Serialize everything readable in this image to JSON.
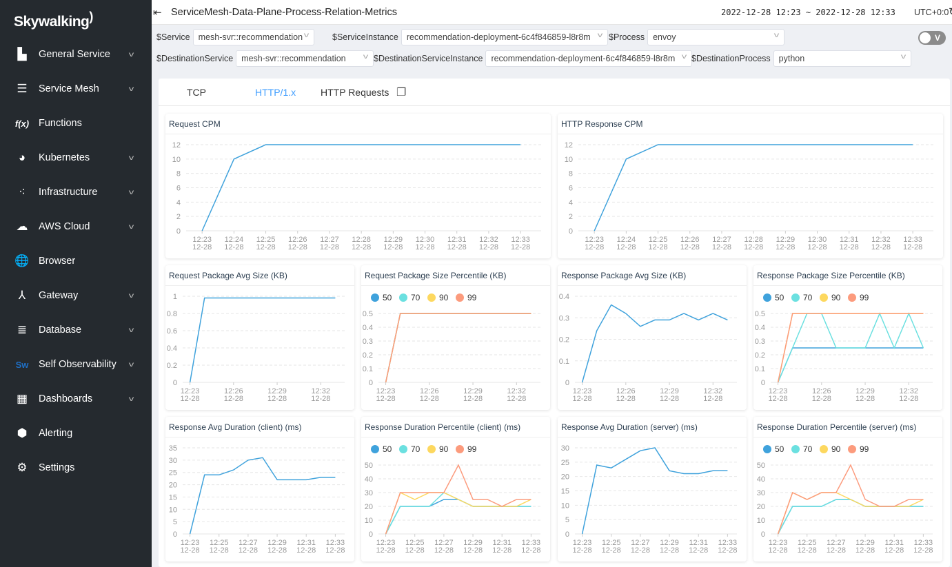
{
  "app": {
    "logo": "Skywalking"
  },
  "sidebar": {
    "items": [
      {
        "label": "General Service",
        "icon": "chart-icon",
        "glyph": "▙",
        "chevron": true
      },
      {
        "label": "Service Mesh",
        "icon": "mesh-icon",
        "glyph": "☰",
        "chevron": true
      },
      {
        "label": "Functions",
        "icon": "function-icon",
        "glyph": "f(x)",
        "chevron": false
      },
      {
        "label": "Kubernetes",
        "icon": "kubernetes-icon",
        "glyph": "◕",
        "chevron": true
      },
      {
        "label": "Infrastructure",
        "icon": "infrastructure-icon",
        "glyph": "⁖",
        "chevron": true
      },
      {
        "label": "AWS Cloud",
        "icon": "cloud-icon",
        "glyph": "☁",
        "chevron": true
      },
      {
        "label": "Browser",
        "icon": "globe-icon",
        "glyph": "🌐",
        "chevron": false
      },
      {
        "label": "Gateway",
        "icon": "gateway-icon",
        "glyph": "⅄",
        "chevron": true
      },
      {
        "label": "Database",
        "icon": "database-icon",
        "glyph": "≣",
        "chevron": true
      },
      {
        "label": "Self Observability",
        "icon": "sw-icon",
        "glyph": "Sw",
        "chevron": true
      },
      {
        "label": "Dashboards",
        "icon": "dashboard-add-icon",
        "glyph": "▦",
        "chevron": true
      },
      {
        "label": "Alerting",
        "icon": "alert-icon",
        "glyph": "⬢",
        "chevron": false
      },
      {
        "label": "Settings",
        "icon": "gear-icon",
        "glyph": "⚙",
        "chevron": false
      }
    ]
  },
  "header": {
    "title": "ServiceMesh-Data-Plane-Process-Relation-Metrics",
    "time_range": "2022-12-28 12:23 ~ 2022-12-28 12:33",
    "timezone": "UTC+0:0"
  },
  "filters": {
    "service": {
      "label": "$Service",
      "value": "mesh-svr::recommendation"
    },
    "service_instance": {
      "label": "$ServiceInstance",
      "value": "recommendation-deployment-6c4f846859-l8r8m"
    },
    "process": {
      "label": "$Process",
      "value": "envoy"
    },
    "dest_service": {
      "label": "$DestinationService",
      "value": "mesh-svr::recommendation"
    },
    "dest_instance": {
      "label": "$DestinationServiceInstance",
      "value": "recommendation-deployment-6c4f846859-l8r8m"
    },
    "dest_process": {
      "label": "$DestinationProcess",
      "value": "python"
    },
    "toggle_label": "V"
  },
  "tabs": [
    {
      "label": "TCP",
      "active": false
    },
    {
      "label": "HTTP/1.x",
      "active": true
    },
    {
      "label": "HTTP Requests",
      "active": false
    }
  ],
  "colors": {
    "accent": "#409eff",
    "sidebar": "#252a2f",
    "p50": "#3fa2dc",
    "p70": "#6be0e0",
    "p90": "#fdd85f",
    "p99": "#fc9b7d"
  },
  "chart_data": [
    {
      "type": "line",
      "title": "Request CPM",
      "x": [
        "12:23",
        "12:24",
        "12:25",
        "12:26",
        "12:27",
        "12:28",
        "12:29",
        "12:30",
        "12:31",
        "12:32",
        "12:33"
      ],
      "x_date": "12-28",
      "xticks": [
        "12:23",
        "12:24",
        "12:25",
        "12:26",
        "12:27",
        "12:28",
        "12:29",
        "12:30",
        "12:31",
        "12:32",
        "12:33"
      ],
      "ylim": [
        0,
        12
      ],
      "yticks": [
        0,
        2,
        4,
        6,
        8,
        10,
        12
      ],
      "grid": true,
      "series": [
        {
          "values": [
            0,
            10,
            12,
            12,
            12,
            12,
            12,
            12,
            12,
            12,
            12
          ]
        }
      ]
    },
    {
      "type": "line",
      "title": "HTTP Response CPM",
      "x": [
        "12:23",
        "12:24",
        "12:25",
        "12:26",
        "12:27",
        "12:28",
        "12:29",
        "12:30",
        "12:31",
        "12:32",
        "12:33"
      ],
      "x_date": "12-28",
      "xticks": [
        "12:23",
        "12:24",
        "12:25",
        "12:26",
        "12:27",
        "12:28",
        "12:29",
        "12:30",
        "12:31",
        "12:32",
        "12:33"
      ],
      "ylim": [
        0,
        12
      ],
      "yticks": [
        0,
        2,
        4,
        6,
        8,
        10,
        12
      ],
      "grid": true,
      "series": [
        {
          "values": [
            0,
            10,
            12,
            12,
            12,
            12,
            12,
            12,
            12,
            12,
            12
          ]
        }
      ]
    },
    {
      "type": "line",
      "title": "Request Package Avg Size (KB)",
      "x": [
        "12:23",
        "12:24",
        "12:25",
        "12:26",
        "12:27",
        "12:28",
        "12:29",
        "12:30",
        "12:31",
        "12:32",
        "12:33"
      ],
      "x_date": "12-28",
      "xticks": [
        "12:23",
        "12:26",
        "12:29",
        "12:32"
      ],
      "ylim": [
        0,
        1
      ],
      "yticks": [
        0,
        0.2,
        0.4,
        0.6,
        0.8,
        1
      ],
      "grid": true,
      "series": [
        {
          "values": [
            0,
            0.98,
            0.98,
            0.98,
            0.98,
            0.98,
            0.98,
            0.98,
            0.98,
            0.98,
            0.98
          ]
        }
      ]
    },
    {
      "type": "line",
      "title": "Request Package Size Percentile (KB)",
      "x": [
        "12:23",
        "12:24",
        "12:25",
        "12:26",
        "12:27",
        "12:28",
        "12:29",
        "12:30",
        "12:31",
        "12:32",
        "12:33"
      ],
      "x_date": "12-28",
      "xticks": [
        "12:23",
        "12:26",
        "12:29",
        "12:32"
      ],
      "ylim": [
        0,
        0.5
      ],
      "yticks": [
        0,
        0.1,
        0.2,
        0.3,
        0.4,
        0.5
      ],
      "grid": true,
      "legend": "top-left",
      "series": [
        {
          "name": "50",
          "values": [
            0,
            0.5,
            0.5,
            0.5,
            0.5,
            0.5,
            0.5,
            0.5,
            0.5,
            0.5,
            0.5
          ]
        },
        {
          "name": "70",
          "values": [
            0,
            0.5,
            0.5,
            0.5,
            0.5,
            0.5,
            0.5,
            0.5,
            0.5,
            0.5,
            0.5
          ]
        },
        {
          "name": "90",
          "values": [
            0,
            0.5,
            0.5,
            0.5,
            0.5,
            0.5,
            0.5,
            0.5,
            0.5,
            0.5,
            0.5
          ]
        },
        {
          "name": "99",
          "values": [
            0,
            0.5,
            0.5,
            0.5,
            0.5,
            0.5,
            0.5,
            0.5,
            0.5,
            0.5,
            0.5
          ]
        }
      ]
    },
    {
      "type": "line",
      "title": "Response Package Avg Size (KB)",
      "x": [
        "12:23",
        "12:24",
        "12:25",
        "12:26",
        "12:27",
        "12:28",
        "12:29",
        "12:30",
        "12:31",
        "12:32",
        "12:33"
      ],
      "x_date": "12-28",
      "xticks": [
        "12:23",
        "12:26",
        "12:29",
        "12:32"
      ],
      "ylim": [
        0,
        0.4
      ],
      "yticks": [
        0,
        0.1,
        0.2,
        0.3,
        0.4
      ],
      "grid": true,
      "series": [
        {
          "values": [
            0,
            0.24,
            0.36,
            0.32,
            0.26,
            0.29,
            0.29,
            0.32,
            0.29,
            0.32,
            0.29
          ]
        }
      ]
    },
    {
      "type": "line",
      "title": "Response Package Size Percentile (KB)",
      "x": [
        "12:23",
        "12:24",
        "12:25",
        "12:26",
        "12:27",
        "12:28",
        "12:29",
        "12:30",
        "12:31",
        "12:32",
        "12:33"
      ],
      "x_date": "12-28",
      "xticks": [
        "12:23",
        "12:26",
        "12:29",
        "12:32"
      ],
      "ylim": [
        0,
        0.5
      ],
      "yticks": [
        0,
        0.1,
        0.2,
        0.3,
        0.4,
        0.5
      ],
      "grid": true,
      "legend": "top-left",
      "series": [
        {
          "name": "50",
          "values": [
            0,
            0.25,
            0.25,
            0.25,
            0.25,
            0.25,
            0.25,
            0.25,
            0.25,
            0.25,
            0.25
          ]
        },
        {
          "name": "70",
          "values": [
            0,
            0.25,
            0.5,
            0.5,
            0.25,
            0.25,
            0.25,
            0.5,
            0.25,
            0.5,
            0.25
          ]
        },
        {
          "name": "90",
          "values": [
            0,
            0.5,
            0.5,
            0.5,
            0.5,
            0.5,
            0.5,
            0.5,
            0.5,
            0.5,
            0.5
          ]
        },
        {
          "name": "99",
          "values": [
            0,
            0.5,
            0.5,
            0.5,
            0.5,
            0.5,
            0.5,
            0.5,
            0.5,
            0.5,
            0.5
          ]
        }
      ]
    },
    {
      "type": "line",
      "title": "Response Avg Duration (client) (ms)",
      "x": [
        "12:23",
        "12:24",
        "12:25",
        "12:26",
        "12:27",
        "12:28",
        "12:29",
        "12:30",
        "12:31",
        "12:32",
        "12:33"
      ],
      "x_date": "12-28",
      "xticks": [
        "12:23",
        "12:25",
        "12:27",
        "12:29",
        "12:31",
        "12:33"
      ],
      "ylim": [
        0,
        35
      ],
      "yticks": [
        0,
        5,
        10,
        15,
        20,
        25,
        30,
        35
      ],
      "grid": true,
      "series": [
        {
          "values": [
            0,
            24,
            24,
            26,
            30,
            31,
            22,
            22,
            22,
            23,
            23
          ]
        }
      ]
    },
    {
      "type": "line",
      "title": "Response Duration Percentile (client) (ms)",
      "x": [
        "12:23",
        "12:24",
        "12:25",
        "12:26",
        "12:27",
        "12:28",
        "12:29",
        "12:30",
        "12:31",
        "12:32",
        "12:33"
      ],
      "x_date": "12-28",
      "xticks": [
        "12:23",
        "12:25",
        "12:27",
        "12:29",
        "12:31",
        "12:33"
      ],
      "ylim": [
        0,
        50
      ],
      "yticks": [
        0,
        10,
        20,
        30,
        40,
        50
      ],
      "grid": true,
      "legend": "top-left",
      "series": [
        {
          "name": "50",
          "values": [
            0,
            20,
            20,
            20,
            25,
            25,
            20,
            20,
            20,
            20,
            20
          ]
        },
        {
          "name": "70",
          "values": [
            0,
            20,
            20,
            20,
            30,
            25,
            20,
            20,
            20,
            20,
            20
          ]
        },
        {
          "name": "90",
          "values": [
            0,
            30,
            25,
            30,
            30,
            25,
            20,
            20,
            20,
            20,
            25
          ]
        },
        {
          "name": "99",
          "values": [
            0,
            30,
            30,
            30,
            30,
            50,
            25,
            25,
            20,
            25,
            25
          ]
        }
      ]
    },
    {
      "type": "line",
      "title": "Response Avg Duration (server) (ms)",
      "x": [
        "12:23",
        "12:24",
        "12:25",
        "12:26",
        "12:27",
        "12:28",
        "12:29",
        "12:30",
        "12:31",
        "12:32",
        "12:33"
      ],
      "x_date": "12-28",
      "xticks": [
        "12:23",
        "12:25",
        "12:27",
        "12:29",
        "12:31",
        "12:33"
      ],
      "ylim": [
        0,
        30
      ],
      "yticks": [
        0,
        5,
        10,
        15,
        20,
        25,
        30
      ],
      "grid": true,
      "series": [
        {
          "values": [
            0,
            24,
            23,
            26,
            29,
            30,
            22,
            21,
            21,
            22,
            22
          ]
        }
      ]
    },
    {
      "type": "line",
      "title": "Response Duration Percentile (server) (ms)",
      "x": [
        "12:23",
        "12:24",
        "12:25",
        "12:26",
        "12:27",
        "12:28",
        "12:29",
        "12:30",
        "12:31",
        "12:32",
        "12:33"
      ],
      "x_date": "12-28",
      "xticks": [
        "12:23",
        "12:25",
        "12:27",
        "12:29",
        "12:31",
        "12:33"
      ],
      "ylim": [
        0,
        50
      ],
      "yticks": [
        0,
        10,
        20,
        30,
        40,
        50
      ],
      "grid": true,
      "legend": "top-left",
      "series": [
        {
          "name": "50",
          "values": [
            0,
            20,
            20,
            20,
            25,
            25,
            20,
            20,
            20,
            20,
            20
          ]
        },
        {
          "name": "70",
          "values": [
            0,
            20,
            20,
            20,
            25,
            25,
            20,
            20,
            20,
            20,
            20
          ]
        },
        {
          "name": "90",
          "values": [
            0,
            30,
            25,
            30,
            30,
            25,
            20,
            20,
            20,
            20,
            25
          ]
        },
        {
          "name": "99",
          "values": [
            0,
            30,
            25,
            30,
            30,
            50,
            25,
            20,
            20,
            25,
            25
          ]
        }
      ]
    }
  ]
}
